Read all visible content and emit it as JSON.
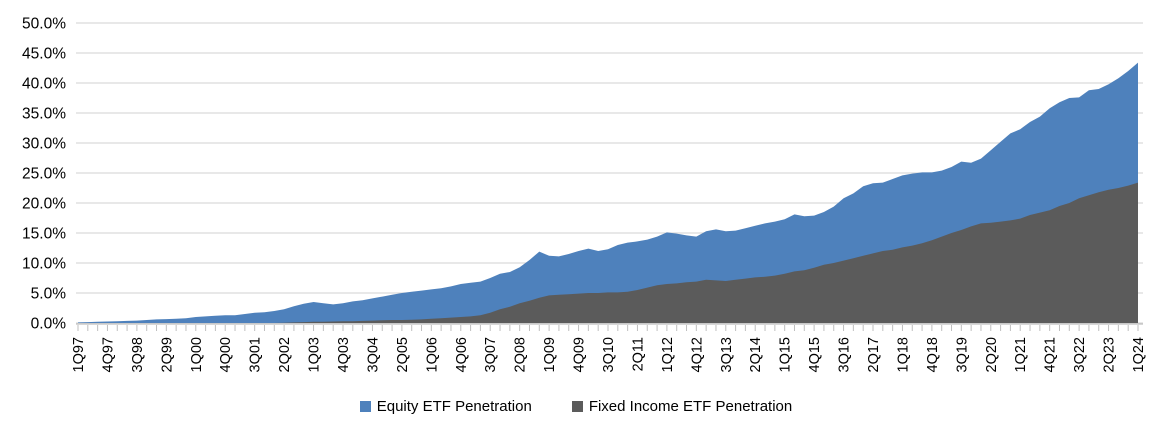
{
  "chart_data": {
    "type": "area",
    "title": "",
    "xlabel": "",
    "ylabel": "",
    "ylim": [
      0,
      50
    ],
    "y_ticks": [
      "0.0%",
      "5.0%",
      "10.0%",
      "15.0%",
      "20.0%",
      "25.0%",
      "30.0%",
      "35.0%",
      "40.0%",
      "45.0%",
      "50.0%"
    ],
    "grid": "horizontal",
    "legend_position": "bottom",
    "x_tick_every": 3,
    "categories": [
      "1Q97",
      "2Q97",
      "3Q97",
      "4Q97",
      "1Q98",
      "2Q98",
      "3Q98",
      "4Q98",
      "1Q99",
      "2Q99",
      "3Q99",
      "4Q99",
      "1Q00",
      "2Q00",
      "3Q00",
      "4Q00",
      "1Q01",
      "2Q01",
      "3Q01",
      "4Q01",
      "1Q02",
      "2Q02",
      "3Q02",
      "4Q02",
      "1Q03",
      "2Q03",
      "3Q03",
      "4Q03",
      "1Q04",
      "2Q04",
      "3Q04",
      "4Q04",
      "1Q05",
      "2Q05",
      "3Q05",
      "4Q05",
      "1Q06",
      "2Q06",
      "3Q06",
      "4Q06",
      "1Q07",
      "2Q07",
      "3Q07",
      "4Q07",
      "1Q08",
      "2Q08",
      "3Q08",
      "4Q08",
      "1Q09",
      "2Q09",
      "3Q09",
      "4Q09",
      "1Q10",
      "2Q10",
      "3Q10",
      "4Q10",
      "1Q11",
      "2Q11",
      "3Q11",
      "4Q11",
      "1Q12",
      "2Q12",
      "3Q12",
      "4Q12",
      "1Q13",
      "2Q13",
      "3Q13",
      "4Q13",
      "1Q14",
      "2Q14",
      "3Q14",
      "4Q14",
      "1Q15",
      "2Q15",
      "3Q15",
      "4Q15",
      "1Q16",
      "2Q16",
      "3Q16",
      "4Q16",
      "1Q17",
      "2Q17",
      "3Q17",
      "4Q17",
      "1Q18",
      "2Q18",
      "3Q18",
      "4Q18",
      "1Q19",
      "2Q19",
      "3Q19",
      "4Q19",
      "1Q20",
      "2Q20",
      "3Q20",
      "4Q20",
      "1Q21",
      "2Q21",
      "3Q21",
      "4Q21",
      "1Q22",
      "2Q22",
      "3Q22",
      "4Q22",
      "1Q23",
      "2Q23",
      "3Q23",
      "4Q23",
      "1Q24"
    ],
    "series": [
      {
        "name": "Equity ETF Penetration",
        "color": "#4E81BC",
        "values": [
          0.1,
          0.15,
          0.2,
          0.25,
          0.3,
          0.35,
          0.4,
          0.5,
          0.6,
          0.65,
          0.7,
          0.8,
          1.0,
          1.1,
          1.2,
          1.3,
          1.3,
          1.5,
          1.7,
          1.8,
          2.0,
          2.3,
          2.8,
          3.2,
          3.5,
          3.3,
          3.1,
          3.3,
          3.6,
          3.8,
          4.1,
          4.4,
          4.7,
          5.0,
          5.2,
          5.4,
          5.6,
          5.8,
          6.1,
          6.5,
          6.7,
          6.9,
          7.5,
          8.2,
          8.5,
          9.3,
          10.5,
          11.9,
          11.2,
          11.1,
          11.5,
          12.0,
          12.4,
          12.0,
          12.3,
          13.0,
          13.4,
          13.6,
          13.9,
          14.4,
          15.1,
          14.9,
          14.6,
          14.4,
          15.3,
          15.6,
          15.3,
          15.4,
          15.8,
          16.2,
          16.6,
          16.9,
          17.3,
          18.1,
          17.8,
          17.9,
          18.5,
          19.4,
          20.8,
          21.6,
          22.8,
          23.3,
          23.4,
          24.0,
          24.6,
          24.9,
          25.1,
          25.1,
          25.4,
          26.0,
          26.9,
          26.7,
          27.4,
          28.8,
          30.2,
          31.6,
          32.3,
          33.5,
          34.4,
          35.8,
          36.8,
          37.5,
          37.6,
          38.8,
          39.0,
          39.8,
          40.8,
          42.0,
          43.4
        ]
      },
      {
        "name": "Fixed Income ETF Penetration",
        "color": "#5B5B5B",
        "values": [
          0,
          0,
          0,
          0,
          0,
          0,
          0,
          0,
          0,
          0,
          0,
          0,
          0,
          0,
          0,
          0,
          0,
          0,
          0,
          0,
          0,
          0.05,
          0.1,
          0.15,
          0.2,
          0.2,
          0.25,
          0.3,
          0.3,
          0.35,
          0.4,
          0.45,
          0.5,
          0.5,
          0.55,
          0.6,
          0.7,
          0.8,
          0.9,
          1.0,
          1.1,
          1.3,
          1.7,
          2.3,
          2.7,
          3.3,
          3.7,
          4.2,
          4.6,
          4.7,
          4.8,
          4.9,
          5.0,
          5.0,
          5.1,
          5.1,
          5.2,
          5.5,
          5.9,
          6.3,
          6.5,
          6.6,
          6.8,
          6.9,
          7.2,
          7.1,
          7.0,
          7.2,
          7.4,
          7.6,
          7.7,
          7.9,
          8.2,
          8.6,
          8.8,
          9.2,
          9.7,
          10.0,
          10.4,
          10.8,
          11.2,
          11.6,
          12.0,
          12.2,
          12.6,
          12.9,
          13.3,
          13.8,
          14.4,
          15.0,
          15.5,
          16.1,
          16.6,
          16.7,
          16.9,
          17.1,
          17.4,
          18.0,
          18.4,
          18.8,
          19.5,
          20.0,
          20.8,
          21.3,
          21.8,
          22.2,
          22.5,
          22.9,
          23.4
        ]
      }
    ],
    "colors": {
      "gridline": "#D9D9D9",
      "axis_line": "#BFBFBF",
      "tick": "#BFBFBF",
      "label_text": "#000000"
    }
  }
}
